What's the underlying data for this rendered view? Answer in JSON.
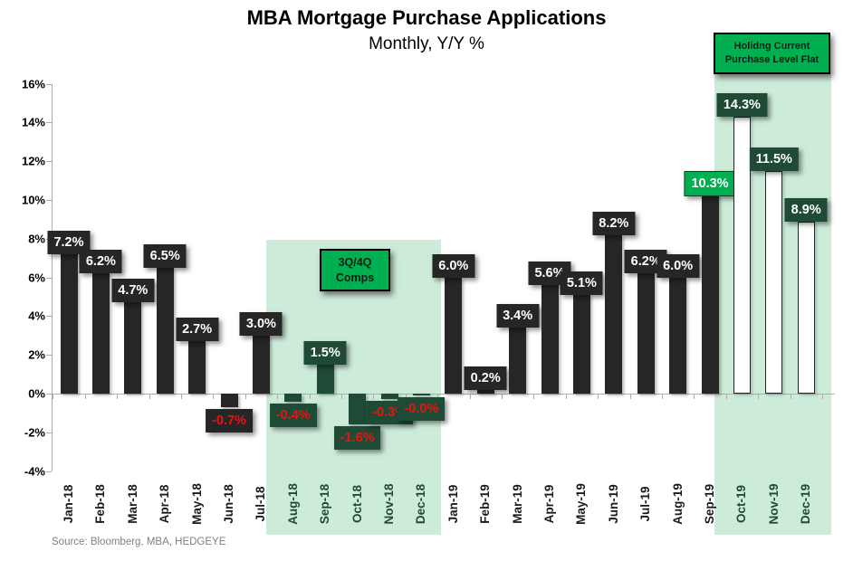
{
  "title": "MBA Mortgage Purchase Applications",
  "subtitle": "Monthly, Y/Y %",
  "source": "Source: Bloomberg, MBA, HEDGEYE",
  "colors": {
    "bar_dark": "#262626",
    "bar_dark_green": "#1E4A36",
    "bar_outline_fill": "#FFFFFF",
    "label_box_dark": "#262626",
    "label_box_dark_green": "#1E4A36",
    "label_box_bright_green": "#00B050",
    "region_fill": "#CDEBD9",
    "positive_value_text": "#FFFFFF",
    "negative_value_text": "#EE1111",
    "axis_line": "#ADADAD",
    "axis_text": "#000000",
    "x_label_highlight": "#1E4A36",
    "source_text": "#808080"
  },
  "chart_data": {
    "type": "bar",
    "title": "MBA Mortgage Purchase Applications",
    "subtitle": "Monthly, Y/Y %",
    "xlabel": "",
    "ylabel": "Y/Y %",
    "ylim": [
      -4,
      16
    ],
    "ytick_step": 2,
    "ytick_labels": [
      "16%",
      "14%",
      "12%",
      "10%",
      "8%",
      "6%",
      "4%",
      "2%",
      "0%",
      "-2%",
      "-4%"
    ],
    "grid": false,
    "legend": false,
    "categories": [
      "Jan-18",
      "Feb-18",
      "Mar-18",
      "Apr-18",
      "May-18",
      "Jun-18",
      "Jul-18",
      "Aug-18",
      "Sep-18",
      "Oct-18",
      "Nov-18",
      "Dec-18",
      "Jan-19",
      "Feb-19",
      "Mar-19",
      "Apr-19",
      "May-19",
      "Jun-19",
      "Jul-19",
      "Aug-19",
      "Sep-19",
      "Oct-19",
      "Nov-19",
      "Dec-19"
    ],
    "values": [
      7.2,
      6.2,
      4.7,
      6.5,
      2.7,
      -0.7,
      3.0,
      -0.4,
      1.5,
      -1.6,
      -0.3,
      -0.0,
      6.0,
      0.2,
      3.4,
      5.6,
      5.1,
      8.2,
      6.2,
      6.0,
      10.3,
      14.3,
      11.5,
      8.9
    ],
    "points": [
      {
        "month": "Jan-18",
        "value": 7.2,
        "label": "7.2%",
        "bar_style": "dark",
        "label_style": "dark"
      },
      {
        "month": "Feb-18",
        "value": 6.2,
        "label": "6.2%",
        "bar_style": "dark",
        "label_style": "dark"
      },
      {
        "month": "Mar-18",
        "value": 4.7,
        "label": "4.7%",
        "bar_style": "dark",
        "label_style": "dark"
      },
      {
        "month": "Apr-18",
        "value": 6.5,
        "label": "6.5%",
        "bar_style": "dark",
        "label_style": "dark"
      },
      {
        "month": "May-18",
        "value": 2.7,
        "label": "2.7%",
        "bar_style": "dark",
        "label_style": "dark"
      },
      {
        "month": "Jun-18",
        "value": -0.7,
        "label": "-0.7%",
        "bar_style": "dark",
        "label_style": "dark"
      },
      {
        "month": "Jul-18",
        "value": 3.0,
        "label": "3.0%",
        "bar_style": "dark",
        "label_style": "dark"
      },
      {
        "month": "Aug-18",
        "value": -0.4,
        "label": "-0.4%",
        "bar_style": "dark-green",
        "label_style": "dark-green"
      },
      {
        "month": "Sep-18",
        "value": 1.5,
        "label": "1.5%",
        "bar_style": "dark-green",
        "label_style": "dark-green"
      },
      {
        "month": "Oct-18",
        "value": -1.6,
        "label": "-1.6%",
        "bar_style": "dark-green",
        "label_style": "dark-green"
      },
      {
        "month": "Nov-18",
        "value": -0.3,
        "label": "-0.3%",
        "bar_style": "dark-green",
        "label_style": "dark-green"
      },
      {
        "month": "Dec-18",
        "value": -0.0,
        "label": "-0.0%",
        "bar_style": "dark-green",
        "label_style": "dark-green"
      },
      {
        "month": "Jan-19",
        "value": 6.0,
        "label": "6.0%",
        "bar_style": "dark",
        "label_style": "dark"
      },
      {
        "month": "Feb-19",
        "value": 0.2,
        "label": "0.2%",
        "bar_style": "dark",
        "label_style": "dark"
      },
      {
        "month": "Mar-19",
        "value": 3.4,
        "label": "3.4%",
        "bar_style": "dark",
        "label_style": "dark"
      },
      {
        "month": "Apr-19",
        "value": 5.6,
        "label": "5.6%",
        "bar_style": "dark",
        "label_style": "dark"
      },
      {
        "month": "May-19",
        "value": 5.1,
        "label": "5.1%",
        "bar_style": "dark",
        "label_style": "dark"
      },
      {
        "month": "Jun-19",
        "value": 8.2,
        "label": "8.2%",
        "bar_style": "dark",
        "label_style": "dark"
      },
      {
        "month": "Jul-19",
        "value": 6.2,
        "label": "6.2%",
        "bar_style": "dark",
        "label_style": "dark"
      },
      {
        "month": "Aug-19",
        "value": 6.0,
        "label": "6.0%",
        "bar_style": "dark",
        "label_style": "dark"
      },
      {
        "month": "Sep-19",
        "value": 10.3,
        "label": "10.3%",
        "bar_style": "dark",
        "label_style": "bright-green"
      },
      {
        "month": "Oct-19",
        "value": 14.3,
        "label": "14.3%",
        "bar_style": "outline",
        "label_style": "dark-green"
      },
      {
        "month": "Nov-19",
        "value": 11.5,
        "label": "11.5%",
        "bar_style": "outline",
        "label_style": "dark-green"
      },
      {
        "month": "Dec-19",
        "value": 8.9,
        "label": "8.9%",
        "bar_style": "outline",
        "label_style": "dark-green"
      }
    ],
    "regions": [
      {
        "start_month": "Aug-18",
        "end_month": "Dec-18",
        "callout_lines": [
          "3Q/4Q",
          "Comps"
        ]
      },
      {
        "start_month": "Oct-19",
        "end_month": "Dec-19",
        "callout_lines": [
          "Holidng Current",
          "Purchase Level Flat"
        ]
      }
    ],
    "legend_position": "none"
  }
}
